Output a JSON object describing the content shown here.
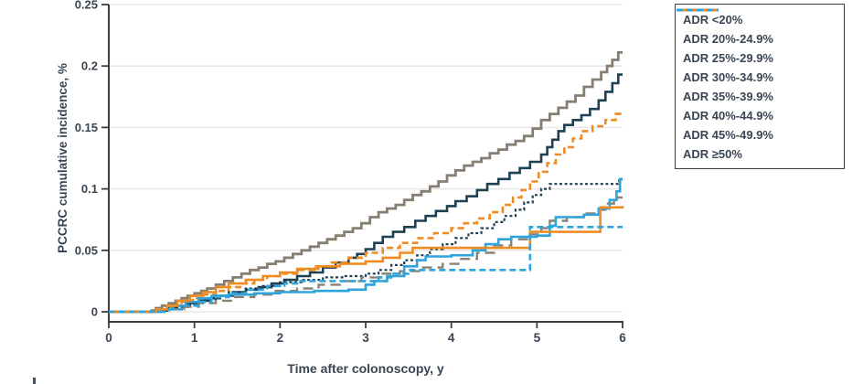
{
  "chart_data": {
    "type": "line",
    "subtype": "step-cumulative-incidence",
    "title": "",
    "xlabel": "Time after colonoscopy, y",
    "ylabel": "PCCRC cumulative incidence, %",
    "xlim": [
      0,
      6
    ],
    "ylim": [
      0,
      0.25
    ],
    "x_ticks": [
      0,
      1,
      2,
      3,
      4,
      5,
      6
    ],
    "y_ticks": [
      0,
      0.05,
      0.1,
      0.15,
      0.2,
      0.25
    ],
    "y_tick_labels": [
      "0",
      "0.05",
      "0.1",
      "0.15",
      "0.2",
      "0.25"
    ],
    "grid": "horizontal",
    "grid_levels": [
      0,
      0.05,
      0.1,
      0.15,
      0.2,
      0.25
    ],
    "legend_position": "outside-right-top",
    "series": [
      {
        "name": "ADR <20%",
        "color": "#867e70",
        "dash": "",
        "width": 2.8,
        "points": [
          [
            0,
            0
          ],
          [
            0.5,
            0.001
          ],
          [
            0.55,
            0.003
          ],
          [
            0.62,
            0.005
          ],
          [
            0.7,
            0.007
          ],
          [
            0.78,
            0.009
          ],
          [
            0.85,
            0.011
          ],
          [
            0.92,
            0.013
          ],
          [
            1.0,
            0.015
          ],
          [
            1.08,
            0.017
          ],
          [
            1.15,
            0.019
          ],
          [
            1.25,
            0.022
          ],
          [
            1.35,
            0.025
          ],
          [
            1.45,
            0.028
          ],
          [
            1.55,
            0.031
          ],
          [
            1.65,
            0.034
          ],
          [
            1.75,
            0.036
          ],
          [
            1.85,
            0.039
          ],
          [
            1.95,
            0.041
          ],
          [
            2.05,
            0.044
          ],
          [
            2.15,
            0.047
          ],
          [
            2.25,
            0.05
          ],
          [
            2.35,
            0.053
          ],
          [
            2.45,
            0.056
          ],
          [
            2.55,
            0.059
          ],
          [
            2.65,
            0.062
          ],
          [
            2.75,
            0.065
          ],
          [
            2.85,
            0.068
          ],
          [
            2.95,
            0.072
          ],
          [
            3.05,
            0.077
          ],
          [
            3.15,
            0.081
          ],
          [
            3.25,
            0.084
          ],
          [
            3.35,
            0.087
          ],
          [
            3.45,
            0.091
          ],
          [
            3.55,
            0.095
          ],
          [
            3.65,
            0.098
          ],
          [
            3.75,
            0.102
          ],
          [
            3.85,
            0.106
          ],
          [
            3.95,
            0.111
          ],
          [
            4.05,
            0.115
          ],
          [
            4.15,
            0.119
          ],
          [
            4.25,
            0.122
          ],
          [
            4.35,
            0.125
          ],
          [
            4.45,
            0.129
          ],
          [
            4.55,
            0.132
          ],
          [
            4.65,
            0.136
          ],
          [
            4.75,
            0.139
          ],
          [
            4.85,
            0.143
          ],
          [
            4.95,
            0.149
          ],
          [
            5.05,
            0.156
          ],
          [
            5.15,
            0.161
          ],
          [
            5.25,
            0.166
          ],
          [
            5.35,
            0.171
          ],
          [
            5.45,
            0.176
          ],
          [
            5.55,
            0.183
          ],
          [
            5.65,
            0.189
          ],
          [
            5.75,
            0.195
          ],
          [
            5.82,
            0.2
          ],
          [
            5.88,
            0.205
          ],
          [
            5.95,
            0.211
          ],
          [
            6,
            0.211
          ]
        ]
      },
      {
        "name": "ADR 20%-24.9%",
        "color": "#1d4052",
        "dash": "",
        "width": 2.6,
        "points": [
          [
            0,
            0
          ],
          [
            0.55,
            0.001
          ],
          [
            0.68,
            0.003
          ],
          [
            0.8,
            0.005
          ],
          [
            0.92,
            0.007
          ],
          [
            1.05,
            0.009
          ],
          [
            1.18,
            0.011
          ],
          [
            1.3,
            0.013
          ],
          [
            1.45,
            0.016
          ],
          [
            1.6,
            0.018
          ],
          [
            1.75,
            0.02
          ],
          [
            1.9,
            0.023
          ],
          [
            2.05,
            0.026
          ],
          [
            2.2,
            0.029
          ],
          [
            2.35,
            0.032
          ],
          [
            2.5,
            0.036
          ],
          [
            2.65,
            0.04
          ],
          [
            2.8,
            0.044
          ],
          [
            2.9,
            0.047
          ],
          [
            3.0,
            0.051
          ],
          [
            3.1,
            0.056
          ],
          [
            3.2,
            0.061
          ],
          [
            3.32,
            0.065
          ],
          [
            3.45,
            0.069
          ],
          [
            3.58,
            0.074
          ],
          [
            3.7,
            0.078
          ],
          [
            3.82,
            0.082
          ],
          [
            3.95,
            0.086
          ],
          [
            4.05,
            0.09
          ],
          [
            4.18,
            0.094
          ],
          [
            4.3,
            0.099
          ],
          [
            4.42,
            0.104
          ],
          [
            4.55,
            0.108
          ],
          [
            4.68,
            0.113
          ],
          [
            4.8,
            0.117
          ],
          [
            4.92,
            0.122
          ],
          [
            5.05,
            0.128
          ],
          [
            5.12,
            0.134
          ],
          [
            5.18,
            0.14
          ],
          [
            5.25,
            0.147
          ],
          [
            5.32,
            0.152
          ],
          [
            5.42,
            0.156
          ],
          [
            5.52,
            0.16
          ],
          [
            5.62,
            0.165
          ],
          [
            5.72,
            0.172
          ],
          [
            5.8,
            0.179
          ],
          [
            5.88,
            0.186
          ],
          [
            5.95,
            0.193
          ],
          [
            6,
            0.193
          ]
        ]
      },
      {
        "name": "ADR 25%-29.9%",
        "color": "#ee8c22",
        "dash": "7 4",
        "width": 2.6,
        "points": [
          [
            0,
            0
          ],
          [
            0.6,
            0.002
          ],
          [
            0.72,
            0.005
          ],
          [
            0.85,
            0.008
          ],
          [
            0.98,
            0.011
          ],
          [
            1.1,
            0.014
          ],
          [
            1.25,
            0.017
          ],
          [
            1.4,
            0.02
          ],
          [
            1.55,
            0.023
          ],
          [
            1.7,
            0.026
          ],
          [
            1.85,
            0.029
          ],
          [
            2.0,
            0.031
          ],
          [
            2.2,
            0.034
          ],
          [
            2.4,
            0.037
          ],
          [
            2.6,
            0.04
          ],
          [
            2.8,
            0.044
          ],
          [
            3.0,
            0.048
          ],
          [
            3.2,
            0.052
          ],
          [
            3.4,
            0.056
          ],
          [
            3.6,
            0.06
          ],
          [
            3.8,
            0.064
          ],
          [
            4.0,
            0.068
          ],
          [
            4.15,
            0.072
          ],
          [
            4.3,
            0.076
          ],
          [
            4.45,
            0.081
          ],
          [
            4.6,
            0.087
          ],
          [
            4.72,
            0.093
          ],
          [
            4.82,
            0.099
          ],
          [
            4.92,
            0.106
          ],
          [
            5.02,
            0.114
          ],
          [
            5.12,
            0.121
          ],
          [
            5.22,
            0.128
          ],
          [
            5.32,
            0.134
          ],
          [
            5.42,
            0.141
          ],
          [
            5.52,
            0.147
          ],
          [
            5.65,
            0.151
          ],
          [
            5.8,
            0.156
          ],
          [
            5.92,
            0.161
          ],
          [
            6,
            0.161
          ]
        ]
      },
      {
        "name": "ADR 30%-34.9%",
        "color": "#1d4052",
        "dash": "3 2.6",
        "width": 2.2,
        "points": [
          [
            0,
            0
          ],
          [
            0.62,
            0.002
          ],
          [
            0.78,
            0.004
          ],
          [
            0.95,
            0.007
          ],
          [
            1.1,
            0.01
          ],
          [
            1.25,
            0.013
          ],
          [
            1.4,
            0.016
          ],
          [
            1.6,
            0.019
          ],
          [
            1.8,
            0.021
          ],
          [
            2.0,
            0.024
          ],
          [
            2.25,
            0.026
          ],
          [
            2.5,
            0.028
          ],
          [
            2.75,
            0.029
          ],
          [
            3.0,
            0.031
          ],
          [
            3.15,
            0.034
          ],
          [
            3.3,
            0.038
          ],
          [
            3.45,
            0.042
          ],
          [
            3.6,
            0.046
          ],
          [
            3.75,
            0.051
          ],
          [
            3.9,
            0.055
          ],
          [
            4.05,
            0.06
          ],
          [
            4.2,
            0.064
          ],
          [
            4.35,
            0.068
          ],
          [
            4.5,
            0.073
          ],
          [
            4.62,
            0.078
          ],
          [
            4.75,
            0.083
          ],
          [
            4.85,
            0.089
          ],
          [
            4.95,
            0.095
          ],
          [
            5.05,
            0.1
          ],
          [
            5.15,
            0.104
          ],
          [
            5.9,
            0.104
          ],
          [
            5.96,
            0.107
          ],
          [
            6,
            0.107
          ]
        ]
      },
      {
        "name": "ADR 35%-39.9%",
        "color": "#8a8275",
        "dash": "11 6",
        "width": 2.4,
        "points": [
          [
            0,
            0
          ],
          [
            0.7,
            0.002
          ],
          [
            0.88,
            0.004
          ],
          [
            1.05,
            0.007
          ],
          [
            1.25,
            0.009
          ],
          [
            1.45,
            0.012
          ],
          [
            1.7,
            0.014
          ],
          [
            1.95,
            0.017
          ],
          [
            2.2,
            0.019
          ],
          [
            2.45,
            0.022
          ],
          [
            2.7,
            0.025
          ],
          [
            2.95,
            0.028
          ],
          [
            3.15,
            0.031
          ],
          [
            3.4,
            0.033
          ],
          [
            3.65,
            0.036
          ],
          [
            3.9,
            0.039
          ],
          [
            4.1,
            0.043
          ],
          [
            4.3,
            0.048
          ],
          [
            4.5,
            0.054
          ],
          [
            4.7,
            0.059
          ],
          [
            4.9,
            0.063
          ],
          [
            5.05,
            0.068
          ],
          [
            5.15,
            0.074
          ],
          [
            5.35,
            0.077
          ],
          [
            5.55,
            0.08
          ],
          [
            5.7,
            0.083
          ],
          [
            5.8,
            0.088
          ],
          [
            5.9,
            0.093
          ],
          [
            6,
            0.093
          ]
        ]
      },
      {
        "name": "ADR 40%-44.9%",
        "color": "#2ea3dc",
        "dash": "",
        "width": 2.6,
        "points": [
          [
            0,
            0
          ],
          [
            0.62,
            0.002
          ],
          [
            0.75,
            0.005
          ],
          [
            0.9,
            0.008
          ],
          [
            1.05,
            0.011
          ],
          [
            1.2,
            0.013
          ],
          [
            1.4,
            0.014
          ],
          [
            1.7,
            0.015
          ],
          [
            2.0,
            0.016
          ],
          [
            2.4,
            0.017
          ],
          [
            2.8,
            0.018
          ],
          [
            3.0,
            0.022
          ],
          [
            3.1,
            0.025
          ],
          [
            3.25,
            0.029
          ],
          [
            3.45,
            0.037
          ],
          [
            3.6,
            0.042
          ],
          [
            3.7,
            0.045
          ],
          [
            4.0,
            0.046
          ],
          [
            4.25,
            0.05
          ],
          [
            4.4,
            0.055
          ],
          [
            4.55,
            0.059
          ],
          [
            4.7,
            0.061
          ],
          [
            5.0,
            0.062
          ],
          [
            5.15,
            0.07
          ],
          [
            5.22,
            0.077
          ],
          [
            5.55,
            0.079
          ],
          [
            5.72,
            0.084
          ],
          [
            5.85,
            0.091
          ],
          [
            5.93,
            0.098
          ],
          [
            5.97,
            0.108
          ],
          [
            6,
            0.108
          ]
        ]
      },
      {
        "name": "ADR 45%-49.9%",
        "color": "#ee8c22",
        "dash": "",
        "width": 2.6,
        "points": [
          [
            0,
            0
          ],
          [
            0.55,
            0.002
          ],
          [
            0.68,
            0.005
          ],
          [
            0.8,
            0.009
          ],
          [
            0.95,
            0.013
          ],
          [
            1.1,
            0.016
          ],
          [
            1.25,
            0.02
          ],
          [
            1.4,
            0.023
          ],
          [
            1.6,
            0.026
          ],
          [
            1.8,
            0.029
          ],
          [
            2.0,
            0.032
          ],
          [
            2.2,
            0.035
          ],
          [
            2.45,
            0.037
          ],
          [
            2.7,
            0.039
          ],
          [
            3.0,
            0.041
          ],
          [
            3.2,
            0.044
          ],
          [
            3.4,
            0.048
          ],
          [
            3.55,
            0.052
          ],
          [
            4.85,
            0.052
          ],
          [
            4.92,
            0.065
          ],
          [
            5.7,
            0.065
          ],
          [
            5.74,
            0.085
          ],
          [
            6,
            0.086
          ]
        ]
      },
      {
        "name": "ADR ≥50%",
        "color": "#2ea3dc",
        "dash": "7 4",
        "width": 2.6,
        "points": [
          [
            0,
            0
          ],
          [
            0.7,
            0.002
          ],
          [
            0.88,
            0.005
          ],
          [
            1.05,
            0.008
          ],
          [
            1.2,
            0.012
          ],
          [
            1.4,
            0.015
          ],
          [
            1.6,
            0.018
          ],
          [
            1.85,
            0.021
          ],
          [
            2.05,
            0.023
          ],
          [
            2.2,
            0.025
          ],
          [
            3.0,
            0.025
          ],
          [
            3.15,
            0.028
          ],
          [
            3.3,
            0.031
          ],
          [
            3.5,
            0.034
          ],
          [
            4.88,
            0.034
          ],
          [
            4.92,
            0.069
          ],
          [
            6,
            0.069
          ]
        ]
      }
    ]
  },
  "colors": {
    "text": "#3a4553",
    "axis": "#3d3d3d",
    "grid": "#e7e7e7",
    "legend_border": "#3f3f3f",
    "background": "#ffffff"
  }
}
